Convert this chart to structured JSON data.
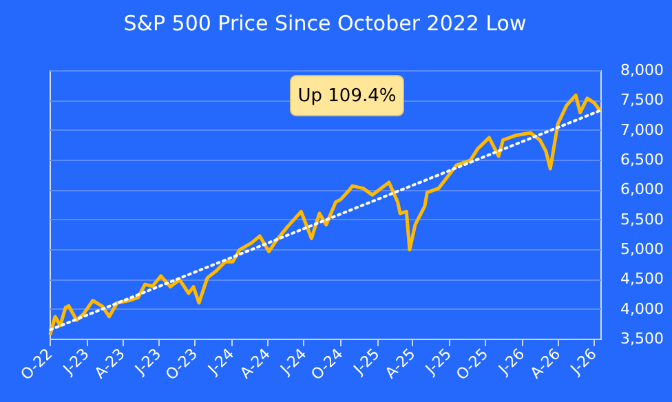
{
  "chart_data": {
    "type": "line",
    "title": "S&P 500 Price Since October 2022 Low",
    "annotations": [
      "Up 109.4%"
    ],
    "xlim": [
      "2022-10-01",
      "2026-07-18"
    ],
    "xticks": [
      {
        "value": "2022-10-01",
        "label": "O-22"
      },
      {
        "value": "2023-01-01",
        "label": "J-23"
      },
      {
        "value": "2023-04-01",
        "label": "A-23"
      },
      {
        "value": "2023-07-01",
        "label": "J-23"
      },
      {
        "value": "2023-10-01",
        "label": "O-23"
      },
      {
        "value": "2024-01-01",
        "label": "J-24"
      },
      {
        "value": "2024-04-01",
        "label": "A-24"
      },
      {
        "value": "2024-07-01",
        "label": "J-24"
      },
      {
        "value": "2024-10-01",
        "label": "O-24"
      },
      {
        "value": "2025-01-01",
        "label": "J-25"
      },
      {
        "value": "2025-04-01",
        "label": "A-25"
      },
      {
        "value": "2025-07-01",
        "label": "J-25"
      },
      {
        "value": "2025-10-01",
        "label": "O-25"
      },
      {
        "value": "2026-01-01",
        "label": "J-26"
      },
      {
        "value": "2026-04-01",
        "label": "A-26"
      },
      {
        "value": "2026-07-01",
        "label": "J-26"
      }
    ],
    "ylim": [
      3500,
      8000
    ],
    "yticks": [
      {
        "value": 3500,
        "label": "3,500"
      },
      {
        "value": 4000,
        "label": "4,000"
      },
      {
        "value": 4500,
        "label": "4,500"
      },
      {
        "value": 5000,
        "label": "5,000"
      },
      {
        "value": 5500,
        "label": "5,500"
      },
      {
        "value": 6000,
        "label": "6,000"
      },
      {
        "value": 6500,
        "label": "6,500"
      },
      {
        "value": 7000,
        "label": "7,000"
      },
      {
        "value": 7500,
        "label": "7,500"
      },
      {
        "value": 8000,
        "label": "8,000"
      }
    ],
    "grid": "y",
    "series": [
      {
        "color": "#ffb900",
        "line_style": "solid",
        "x": [
          "2022-10-03",
          "2022-10-15",
          "2022-10-28",
          "2022-11-10",
          "2022-11-18",
          "2022-12-08",
          "2022-12-25",
          "2023-01-18",
          "2023-02-11",
          "2023-02-28",
          "2023-03-20",
          "2023-04-19",
          "2023-05-12",
          "2023-05-29",
          "2023-06-17",
          "2023-07-08",
          "2023-08-01",
          "2023-08-24",
          "2023-09-16",
          "2023-09-28",
          "2023-10-12",
          "2023-11-02",
          "2023-11-25",
          "2023-12-17",
          "2024-01-05",
          "2024-01-22",
          "2024-02-20",
          "2024-03-13",
          "2024-04-05",
          "2024-04-23",
          "2024-05-21",
          "2024-06-25",
          "2024-07-21",
          "2024-08-10",
          "2024-08-27",
          "2024-09-20",
          "2024-10-02",
          "2024-10-24",
          "2024-11-01",
          "2024-11-28",
          "2024-12-21",
          "2025-02-01",
          "2025-02-23",
          "2025-03-01",
          "2025-03-17",
          "2025-03-25",
          "2025-04-08",
          "2025-05-02",
          "2025-05-08",
          "2025-06-06",
          "2025-07-21",
          "2025-08-25",
          "2025-09-12",
          "2025-10-11",
          "2025-11-04",
          "2025-11-15",
          "2025-12-19",
          "2026-01-23",
          "2026-02-16",
          "2026-03-03",
          "2026-03-14",
          "2026-04-02",
          "2026-04-24",
          "2026-05-17",
          "2026-05-28",
          "2026-06-15",
          "2026-07-03",
          "2026-07-16"
        ],
        "values": [
          3580,
          3870,
          3720,
          4020,
          4050,
          3810,
          3910,
          4140,
          4040,
          3870,
          4100,
          4140,
          4190,
          4410,
          4380,
          4550,
          4370,
          4490,
          4260,
          4370,
          4100,
          4520,
          4640,
          4790,
          4790,
          4990,
          5100,
          5220,
          4960,
          5140,
          5370,
          5630,
          5180,
          5600,
          5410,
          5790,
          5830,
          5990,
          6060,
          6020,
          5910,
          6120,
          5790,
          5600,
          5630,
          4990,
          5410,
          5720,
          5950,
          6020,
          6410,
          6490,
          6680,
          6870,
          6560,
          6830,
          6910,
          6950,
          6830,
          6640,
          6350,
          7100,
          7410,
          7580,
          7290,
          7530,
          7450,
          7330
        ]
      },
      {
        "color": "#ffffff",
        "line_style": "dotted",
        "x": [
          "2022-10-03",
          "2026-07-16"
        ],
        "values": [
          3650,
          7320
        ]
      }
    ]
  }
}
